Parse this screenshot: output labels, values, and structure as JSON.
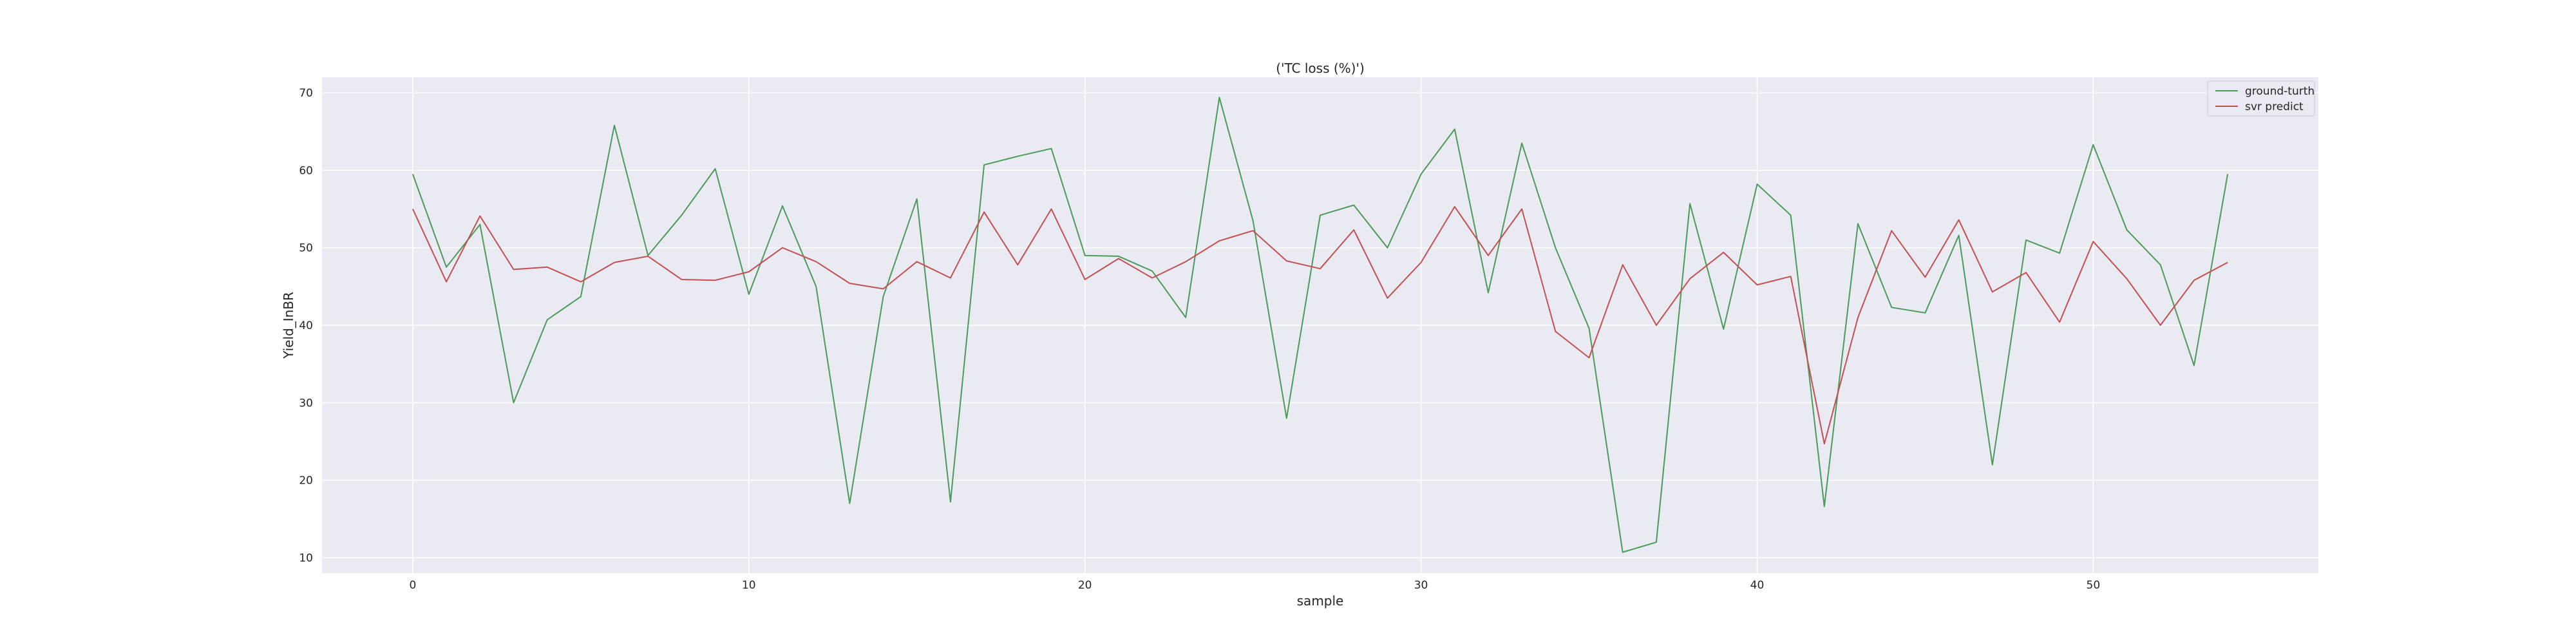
{
  "chart_data": {
    "type": "line",
    "title": "('TC loss (%)')",
    "xlabel": "sample",
    "ylabel": "Yield_InBR",
    "xlim": [
      -2.7,
      56.7
    ],
    "ylim": [
      8,
      72
    ],
    "x_ticks": [
      0,
      10,
      20,
      30,
      40,
      50
    ],
    "y_ticks": [
      10,
      20,
      30,
      40,
      50,
      60,
      70
    ],
    "grid": true,
    "legend_position": "top-right",
    "x": [
      0,
      1,
      2,
      3,
      4,
      5,
      6,
      7,
      8,
      9,
      10,
      11,
      12,
      13,
      14,
      15,
      16,
      17,
      18,
      19,
      20,
      21,
      22,
      23,
      24,
      25,
      26,
      27,
      28,
      29,
      30,
      31,
      32,
      33,
      34,
      35,
      36,
      37,
      38,
      39,
      40,
      41,
      42,
      43,
      44,
      45,
      46,
      47,
      48,
      49,
      50,
      51,
      52,
      53,
      54
    ],
    "series": [
      {
        "name": "ground-turth",
        "color": "#4c9a5a",
        "values": [
          59.5,
          47.5,
          53,
          30,
          40.7,
          43.7,
          65.8,
          49,
          54.2,
          60.2,
          44,
          55.4,
          45,
          17,
          43.7,
          56.3,
          17.2,
          60.7,
          61.8,
          62.8,
          49,
          48.9,
          47,
          41,
          69.4,
          53.5,
          28,
          54.2,
          55.5,
          50,
          59.5,
          65.3,
          44.2,
          63.5,
          50,
          39.6,
          10.7,
          12,
          55.7,
          39.5,
          58.2,
          54.2,
          16.6,
          53.1,
          42.3,
          41.6,
          51.6,
          22,
          51,
          49.3,
          63.3,
          52.3,
          47.8,
          34.8,
          59.5
        ]
      },
      {
        "name": "svr predict",
        "color": "#c44e52",
        "values": [
          55,
          45.6,
          54.1,
          47.2,
          47.5,
          45.6,
          48.1,
          48.9,
          45.9,
          45.8,
          46.9,
          50,
          48.2,
          45.4,
          44.7,
          48.2,
          46.1,
          54.6,
          47.8,
          55,
          45.9,
          48.6,
          46.1,
          48.2,
          50.9,
          52.2,
          48.3,
          47.3,
          52.3,
          43.5,
          48.1,
          55.3,
          49,
          55,
          39.2,
          35.8,
          47.8,
          40,
          46,
          49.4,
          45.2,
          46.3,
          24.7,
          41,
          52.2,
          46.2,
          53.6,
          44.3,
          46.8,
          40.4,
          50.8,
          46,
          40,
          45.8,
          48.1
        ]
      }
    ]
  }
}
